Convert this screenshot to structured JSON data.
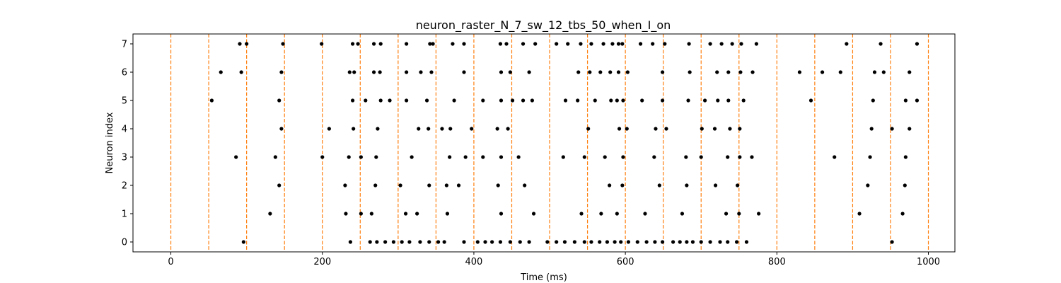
{
  "chart_data": {
    "type": "scatter",
    "title": "neuron_raster_N_7_sw_12_tbs_50_when_I_on",
    "xlabel": "Time (ms)",
    "ylabel": "Neuron index",
    "xlim": [
      -50,
      1035
    ],
    "ylim": [
      -0.35,
      7.35
    ],
    "xticks": [
      0,
      200,
      400,
      600,
      800,
      1000
    ],
    "yticks": [
      0,
      1,
      2,
      3,
      4,
      5,
      6,
      7
    ],
    "grid": false,
    "marker_color": "#000000",
    "vline_color": "#ff7f0e",
    "vlines": [
      0,
      50,
      100,
      150,
      200,
      250,
      300,
      350,
      400,
      450,
      500,
      550,
      600,
      650,
      700,
      750,
      800,
      850,
      900,
      950,
      1000
    ],
    "spikes": [
      {
        "neuron": 0,
        "times": [
          96,
          237,
          263,
          272,
          283,
          294,
          305,
          315,
          329,
          341,
          353,
          361,
          387,
          405,
          415,
          424,
          435,
          448,
          461,
          473,
          497,
          509,
          520,
          533,
          546,
          555,
          566,
          576,
          586,
          594,
          604,
          616,
          628,
          639,
          649,
          663,
          672,
          681,
          689,
          700,
          712,
          725,
          735,
          747,
          760,
          952
        ]
      },
      {
        "neuron": 1,
        "times": [
          131,
          231,
          251,
          265,
          310,
          325,
          365,
          436,
          479,
          542,
          568,
          589,
          626,
          675,
          733,
          750,
          776,
          909,
          966
        ]
      },
      {
        "neuron": 2,
        "times": [
          143,
          230,
          270,
          303,
          341,
          364,
          380,
          432,
          467,
          579,
          596,
          645,
          681,
          719,
          748,
          920,
          969
        ]
      },
      {
        "neuron": 3,
        "times": [
          86,
          138,
          200,
          235,
          251,
          271,
          318,
          368,
          389,
          412,
          436,
          459,
          518,
          546,
          573,
          597,
          638,
          680,
          700,
          735,
          751,
          767,
          876,
          923,
          970
        ]
      },
      {
        "neuron": 4,
        "times": [
          146,
          209,
          241,
          273,
          327,
          340,
          358,
          369,
          397,
          431,
          445,
          551,
          592,
          602,
          640,
          654,
          701,
          718,
          738,
          751,
          925,
          952,
          975
        ]
      },
      {
        "neuron": 5,
        "times": [
          54,
          143,
          240,
          257,
          277,
          289,
          311,
          338,
          374,
          412,
          436,
          451,
          465,
          477,
          521,
          537,
          560,
          581,
          589,
          597,
          622,
          649,
          683,
          705,
          722,
          736,
          756,
          845,
          927,
          970,
          985
        ]
      },
      {
        "neuron": 6,
        "times": [
          66,
          93,
          146,
          236,
          242,
          268,
          276,
          311,
          330,
          344,
          387,
          436,
          448,
          473,
          538,
          553,
          567,
          580,
          591,
          603,
          649,
          685,
          721,
          736,
          752,
          768,
          830,
          860,
          884,
          929,
          941,
          975
        ]
      },
      {
        "neuron": 7,
        "times": [
          91,
          100,
          148,
          199,
          240,
          247,
          268,
          277,
          311,
          342,
          346,
          372,
          387,
          435,
          443,
          465,
          481,
          509,
          524,
          541,
          555,
          571,
          583,
          591,
          596,
          620,
          636,
          652,
          684,
          712,
          727,
          741,
          753,
          773,
          892,
          937,
          985
        ]
      }
    ]
  }
}
